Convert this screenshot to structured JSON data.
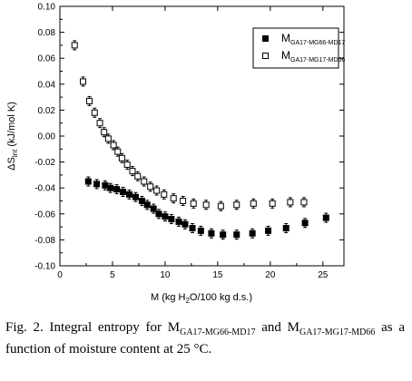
{
  "chart_data": {
    "type": "scatter",
    "xlabel": "M (kg H2O/100 kg d.s.)",
    "ylabel": "ΔSint (kJ/mol K)",
    "xlim": [
      0,
      27
    ],
    "ylim": [
      -0.1,
      0.1
    ],
    "x_ticks": [
      0,
      5,
      10,
      15,
      20,
      25
    ],
    "y_ticks": [
      -0.1,
      -0.08,
      -0.06,
      -0.04,
      -0.02,
      0.0,
      0.02,
      0.04,
      0.06,
      0.08,
      0.1
    ],
    "x_tick_labels": [
      "0",
      "5",
      "10",
      "15",
      "20",
      "25"
    ],
    "y_tick_labels": [
      "-0.10",
      "-0.08",
      "-0.06",
      "-0.04",
      "-0.02",
      "0.00",
      "0.02",
      "0.04",
      "0.06",
      "0.08",
      "0.10"
    ],
    "grid": false,
    "legend_position": "top-right",
    "series": [
      {
        "name": "M_GA17-MG66-MD17",
        "marker": "filled-square",
        "points": [
          [
            2.7,
            -0.035
          ],
          [
            3.5,
            -0.037
          ],
          [
            4.3,
            -0.038
          ],
          [
            4.8,
            -0.04
          ],
          [
            5.4,
            -0.041
          ],
          [
            6.0,
            -0.043
          ],
          [
            6.6,
            -0.045
          ],
          [
            7.2,
            -0.047
          ],
          [
            7.8,
            -0.05
          ],
          [
            8.3,
            -0.053
          ],
          [
            8.9,
            -0.056
          ],
          [
            9.4,
            -0.06
          ],
          [
            10.0,
            -0.062
          ],
          [
            10.6,
            -0.064
          ],
          [
            11.3,
            -0.066
          ],
          [
            11.9,
            -0.068
          ],
          [
            12.6,
            -0.071
          ],
          [
            13.4,
            -0.073
          ],
          [
            14.4,
            -0.075
          ],
          [
            15.5,
            -0.076
          ],
          [
            16.8,
            -0.076
          ],
          [
            18.3,
            -0.075
          ],
          [
            19.8,
            -0.073
          ],
          [
            21.5,
            -0.071
          ],
          [
            23.3,
            -0.067
          ],
          [
            25.3,
            -0.063
          ]
        ]
      },
      {
        "name": "M_GA17-MG17-MD66",
        "marker": "open-square",
        "points": [
          [
            1.4,
            0.07
          ],
          [
            2.2,
            0.042
          ],
          [
            2.8,
            0.027
          ],
          [
            3.3,
            0.018
          ],
          [
            3.8,
            0.01
          ],
          [
            4.2,
            0.003
          ],
          [
            4.6,
            -0.002
          ],
          [
            5.1,
            -0.007
          ],
          [
            5.5,
            -0.012
          ],
          [
            5.9,
            -0.017
          ],
          [
            6.4,
            -0.022
          ],
          [
            6.9,
            -0.027
          ],
          [
            7.4,
            -0.031
          ],
          [
            8.0,
            -0.035
          ],
          [
            8.6,
            -0.039
          ],
          [
            9.2,
            -0.042
          ],
          [
            9.9,
            -0.045
          ],
          [
            10.8,
            -0.048
          ],
          [
            11.7,
            -0.05
          ],
          [
            12.7,
            -0.052
          ],
          [
            13.9,
            -0.053
          ],
          [
            15.3,
            -0.054
          ],
          [
            16.8,
            -0.053
          ],
          [
            18.4,
            -0.052
          ],
          [
            20.2,
            -0.052
          ],
          [
            21.9,
            -0.051
          ],
          [
            23.2,
            -0.051
          ]
        ]
      }
    ]
  },
  "legend": {
    "entries": [
      {
        "base": "M",
        "sub": "GA17-MG66-MD17"
      },
      {
        "base": "M",
        "sub": "GA17-MG17-MD66"
      }
    ]
  },
  "axes": {
    "xlabel": "M (kg H",
    "xlabel_sub": "2",
    "xlabel_rest": "O/100 kg d.s.)",
    "ylabel": "ΔS",
    "ylabel_sub": "int",
    "ylabel_rest": " (kJ/mol K)"
  },
  "caption": {
    "prefix": "Fig.   2.   Integral entropy for M",
    "sub1": "GA17-MG66-MD17",
    "mid": " and M",
    "sub2": "GA17-MG17-MD66",
    "suffix": " as a function of moisture content at 25 °C."
  },
  "colors": {
    "axis": "#000000",
    "marker": "#000000",
    "background": "#ffffff"
  }
}
